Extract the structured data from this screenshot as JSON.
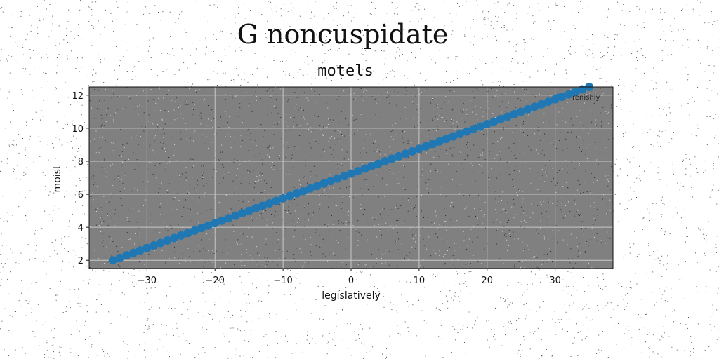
{
  "figure": {
    "suptitle": "G noncuspidate"
  },
  "chart_data": {
    "type": "scatter",
    "title": "motels",
    "xlabel": "legislatively",
    "ylabel": "moist",
    "xlim": [
      -38.5,
      38.5
    ],
    "ylim": [
      1.5,
      12.5
    ],
    "xticks": [
      -30,
      -20,
      -10,
      0,
      10,
      20,
      30
    ],
    "yticks": [
      2,
      4,
      6,
      8,
      10,
      12
    ],
    "xtick_labels": [
      "−30",
      "−20",
      "−10",
      "0",
      "10",
      "20",
      "30"
    ],
    "ytick_labels": [
      "2",
      "4",
      "6",
      "8",
      "10",
      "12"
    ],
    "grid": true,
    "legend_position": "top-right",
    "background_color": "#808080",
    "series": [
      {
        "name": "renishly",
        "color": "#1f77b4",
        "x": [
          -35.0,
          -34.0,
          -33.0,
          -32.0,
          -31.0,
          -30.0,
          -29.0,
          -28.0,
          -27.0,
          -26.0,
          -25.0,
          -24.0,
          -23.0,
          -22.0,
          -21.0,
          -20.0,
          -19.0,
          -18.0,
          -17.0,
          -16.0,
          -15.0,
          -14.0,
          -13.0,
          -12.0,
          -11.0,
          -10.0,
          -9.0,
          -8.0,
          -7.0,
          -6.0,
          -5.0,
          -4.0,
          -3.0,
          -2.0,
          -1.0,
          0.0,
          1.0,
          2.0,
          3.0,
          4.0,
          5.0,
          6.0,
          7.0,
          8.0,
          9.0,
          10.0,
          11.0,
          12.0,
          13.0,
          14.0,
          15.0,
          16.0,
          17.0,
          18.0,
          19.0,
          20.0,
          21.0,
          22.0,
          23.0,
          24.0,
          25.0,
          26.0,
          27.0,
          28.0,
          29.0,
          30.0,
          31.0,
          32.0,
          33.0,
          34.0,
          35.0
        ],
        "y": [
          2.0,
          2.15,
          2.3,
          2.45,
          2.6,
          2.75,
          2.9,
          3.05,
          3.2,
          3.35,
          3.5,
          3.65,
          3.8,
          3.95,
          4.1,
          4.25,
          4.4,
          4.55,
          4.7,
          4.85,
          5.0,
          5.15,
          5.3,
          5.45,
          5.6,
          5.75,
          5.9,
          6.05,
          6.2,
          6.35,
          6.5,
          6.65,
          6.8,
          6.95,
          7.1,
          7.25,
          7.4,
          7.55,
          7.7,
          7.85,
          8.0,
          8.15,
          8.3,
          8.45,
          8.6,
          8.75,
          8.9,
          9.05,
          9.2,
          9.35,
          9.5,
          9.65,
          9.8,
          9.95,
          10.1,
          10.25,
          10.4,
          10.55,
          10.7,
          10.85,
          11.0,
          11.15,
          11.3,
          11.45,
          11.6,
          11.75,
          11.9,
          12.05,
          12.2,
          12.35,
          12.5
        ]
      }
    ]
  }
}
